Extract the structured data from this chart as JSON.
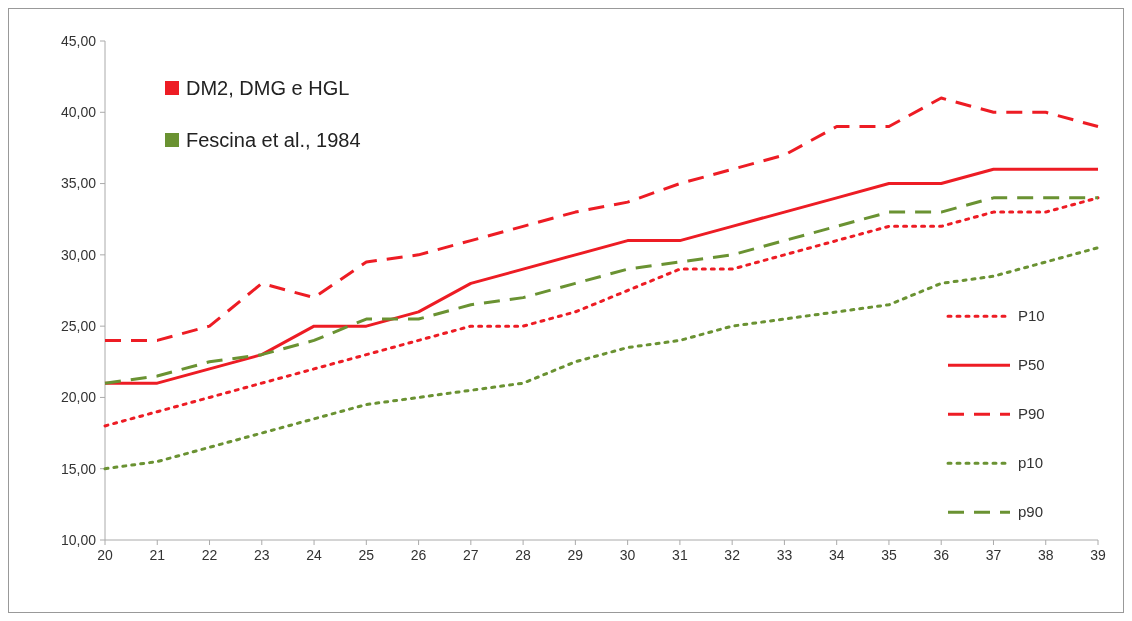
{
  "chart_data": {
    "type": "line",
    "x": [
      20,
      21,
      22,
      23,
      24,
      25,
      26,
      27,
      28,
      29,
      30,
      31,
      32,
      33,
      34,
      35,
      36,
      37,
      38,
      39
    ],
    "xlim": [
      20,
      39
    ],
    "xticks": [
      20,
      21,
      22,
      23,
      24,
      25,
      26,
      27,
      28,
      29,
      30,
      31,
      32,
      33,
      34,
      35,
      36,
      37,
      38,
      39
    ],
    "ylim": [
      10,
      45
    ],
    "yticks": [
      {
        "value": 10,
        "label": "10,00"
      },
      {
        "value": 15,
        "label": "15,00"
      },
      {
        "value": 20,
        "label": "20,00"
      },
      {
        "value": 25,
        "label": "25,00"
      },
      {
        "value": 30,
        "label": "30,00"
      },
      {
        "value": 35,
        "label": "35,00"
      },
      {
        "value": 40,
        "label": "40,00"
      },
      {
        "value": 45,
        "label": "45,00"
      }
    ],
    "grid": false,
    "legend": "right",
    "annotations": [
      "DM2, DMG e HGL",
      "Fescina et al., 1984"
    ],
    "series": [
      {
        "name": "P10",
        "color": "#ed1c24",
        "line_style": "dotted",
        "values": [
          18,
          19,
          20,
          21,
          22,
          23,
          24,
          25,
          25,
          26,
          27.5,
          29,
          29,
          30,
          31,
          32,
          32,
          33,
          33,
          34
        ]
      },
      {
        "name": "P50",
        "color": "#ed1c24",
        "line_style": "solid",
        "values": [
          21,
          21,
          22,
          23,
          25,
          25,
          26,
          28,
          29,
          30,
          31,
          31,
          32,
          33,
          34,
          35,
          35,
          36,
          36,
          36
        ]
      },
      {
        "name": "P90",
        "color": "#ed1c24",
        "line_style": "dashed",
        "values": [
          24,
          24,
          25,
          28,
          27,
          29.5,
          30,
          31,
          32,
          33,
          33.7,
          35,
          36,
          37,
          39,
          39,
          41,
          40,
          40,
          39
        ]
      },
      {
        "name": "p10",
        "color": "#6a9232",
        "line_style": "dotted",
        "values": [
          15,
          15.5,
          16.5,
          17.5,
          18.5,
          19.5,
          20,
          20.5,
          21,
          22.5,
          23.5,
          24,
          25,
          25.5,
          26,
          26.5,
          28,
          28.5,
          29.5,
          30.5
        ]
      },
      {
        "name": "p90",
        "color": "#6a9232",
        "line_style": "dashed",
        "values": [
          21,
          21.5,
          22.5,
          23,
          24,
          25.5,
          25.5,
          26.5,
          27,
          28,
          29,
          29.5,
          30,
          31,
          32,
          33,
          33,
          34,
          34,
          34
        ]
      }
    ]
  }
}
